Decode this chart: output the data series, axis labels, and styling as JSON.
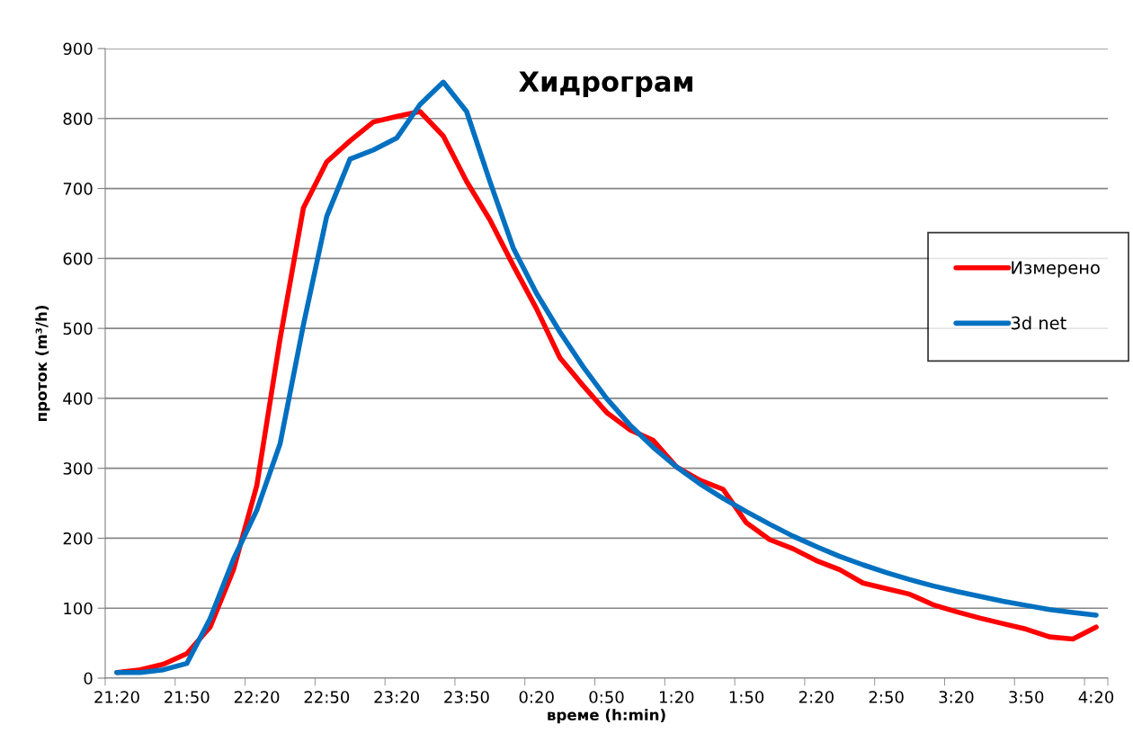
{
  "chart_data": {
    "type": "line",
    "title": "Хидрограм",
    "xlabel": "време (h:min)",
    "ylabel": "проток (m³/h)",
    "categories": [
      "21:20",
      null,
      null,
      "21:50",
      null,
      null,
      "22:20",
      null,
      null,
      "22:50",
      null,
      null,
      "23:20",
      null,
      null,
      "23:50",
      null,
      null,
      "0:20",
      null,
      null,
      "0:50",
      null,
      null,
      "1:20",
      null,
      null,
      "1:50",
      null,
      null,
      "2:20",
      null,
      null,
      "2:50",
      null,
      null,
      "3:20",
      null,
      null,
      "3:50",
      null,
      null,
      "4:20"
    ],
    "series": [
      {
        "name": "Измерено",
        "color": "#ff0000",
        "values": [
          8,
          12,
          20,
          35,
          73,
          155,
          275,
          485,
          672,
          738,
          768,
          795,
          803,
          810,
          775,
          710,
          655,
          590,
          528,
          458,
          418,
          380,
          355,
          340,
          302,
          283,
          270,
          222,
          198,
          185,
          168,
          155,
          136,
          128,
          120,
          105,
          95,
          86,
          78,
          70,
          59,
          56,
          73
        ]
      },
      {
        "name": "3d net",
        "color": "#0070c0",
        "values": [
          8,
          8,
          12,
          21,
          85,
          170,
          240,
          335,
          505,
          660,
          742,
          755,
          772,
          820,
          852,
          810,
          710,
          615,
          550,
          495,
          445,
          400,
          362,
          330,
          302,
          278,
          257,
          238,
          220,
          203,
          188,
          174,
          162,
          151,
          141,
          132,
          124,
          117,
          110,
          104,
          98,
          94,
          90
        ]
      }
    ],
    "ylim": [
      0,
      900
    ],
    "yticks": [
      0,
      100,
      200,
      300,
      400,
      500,
      600,
      700,
      800,
      900
    ],
    "grid": "y",
    "legend": "right",
    "marker": "none",
    "line_style": "solid"
  }
}
